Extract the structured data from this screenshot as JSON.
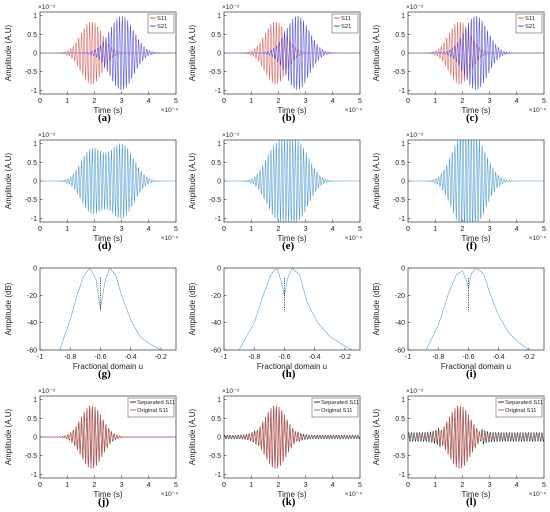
{
  "chart_data": [
    {
      "id": "a",
      "label": "(a)",
      "type": "line",
      "xlabel": "Time (s)",
      "ylabel": "Amplitude (A.U)",
      "xlim": [
        0,
        5
      ],
      "ylim": [
        -1.1,
        1.1
      ],
      "x_ticks": [
        "0",
        "1",
        "2",
        "3",
        "4",
        "5"
      ],
      "y_ticks": [
        "-1",
        "-0.5",
        "0",
        "0.5",
        "1"
      ],
      "x_exponent": "×10⁻⁴",
      "y_exponent": "×10⁻⁹",
      "legend": [
        "S11",
        "S21"
      ],
      "legend_position": "top-right",
      "series": [
        {
          "name": "S11",
          "color": "#d9534f",
          "center": 1.9,
          "width": 0.55,
          "amplitude": 0.85,
          "cycles_per_unit": 10
        },
        {
          "name": "S21",
          "color": "#3b3bd6",
          "center": 3.0,
          "width": 0.62,
          "amplitude": 1.0,
          "cycles_per_unit": 10
        }
      ]
    },
    {
      "id": "b",
      "label": "(b)",
      "type": "line",
      "xlabel": "Time (s)",
      "ylabel": "Amplitude (A.U)",
      "xlim": [
        0,
        5
      ],
      "ylim": [
        -1.1,
        1.1
      ],
      "x_ticks": [
        "0",
        "1",
        "2",
        "3",
        "4",
        "5"
      ],
      "y_ticks": [
        "-1",
        "-0.5",
        "0",
        "0.5",
        "1"
      ],
      "x_exponent": "×10⁻⁴",
      "y_exponent": "×10⁻⁹",
      "legend": [
        "S11",
        "S21"
      ],
      "legend_position": "top-right",
      "series": [
        {
          "name": "S11",
          "color": "#d9534f",
          "center": 1.9,
          "width": 0.55,
          "amplitude": 0.85,
          "cycles_per_unit": 10
        },
        {
          "name": "S21",
          "color": "#3b3bd6",
          "center": 2.7,
          "width": 0.6,
          "amplitude": 1.0,
          "cycles_per_unit": 10
        }
      ]
    },
    {
      "id": "c",
      "label": "(c)",
      "type": "line",
      "xlabel": "Time (s)",
      "ylabel": "Amplitude (A.U)",
      "xlim": [
        0,
        5
      ],
      "ylim": [
        -1.1,
        1.1
      ],
      "x_ticks": [
        "0",
        "1",
        "2",
        "3",
        "4",
        "5"
      ],
      "y_ticks": [
        "-1",
        "-0.5",
        "0",
        "0.5",
        "1"
      ],
      "x_exponent": "×10⁻⁴",
      "y_exponent": "×10⁻⁹",
      "legend": [
        "S11",
        "S21"
      ],
      "legend_position": "top-right",
      "series": [
        {
          "name": "S11",
          "color": "#d9534f",
          "center": 1.9,
          "width": 0.55,
          "amplitude": 0.85,
          "cycles_per_unit": 10
        },
        {
          "name": "S21",
          "color": "#3b3bd6",
          "center": 2.5,
          "width": 0.6,
          "amplitude": 1.0,
          "cycles_per_unit": 10
        }
      ]
    },
    {
      "id": "d",
      "label": "(d)",
      "type": "line",
      "xlabel": "Time (s)",
      "ylabel": "Amplitude (A.U)",
      "xlim": [
        0,
        5
      ],
      "ylim": [
        -1.1,
        1.1
      ],
      "x_ticks": [
        "0",
        "1",
        "2",
        "3",
        "4",
        "5"
      ],
      "y_ticks": [
        "-1",
        "-0.5",
        "0",
        "0.5",
        "1"
      ],
      "x_exponent": "×10⁻⁴",
      "y_exponent": "×10⁻⁹",
      "legend": [],
      "series": [
        {
          "name": "",
          "color": "#3a8fc7",
          "mix": [
            {
              "center": 1.9,
              "width": 0.55,
              "amplitude": 0.85
            },
            {
              "center": 3.0,
              "width": 0.62,
              "amplitude": 1.0
            }
          ],
          "cycles_per_unit": 10
        }
      ]
    },
    {
      "id": "e",
      "label": "(e)",
      "type": "line",
      "xlabel": "Time (s)",
      "ylabel": "Amplitude (A.U)",
      "xlim": [
        0,
        5
      ],
      "ylim": [
        -1.1,
        1.1
      ],
      "x_ticks": [
        "0",
        "1",
        "2",
        "3",
        "4",
        "5"
      ],
      "y_ticks": [
        "-1",
        "-0.5",
        "0",
        "0.5",
        "1"
      ],
      "x_exponent": "×10⁻⁴",
      "y_exponent": "×10⁻⁹",
      "legend": [],
      "series": [
        {
          "name": "",
          "color": "#3a8fc7",
          "mix": [
            {
              "center": 1.9,
              "width": 0.55,
              "amplitude": 0.85
            },
            {
              "center": 2.7,
              "width": 0.6,
              "amplitude": 1.0
            }
          ],
          "cycles_per_unit": 10
        }
      ]
    },
    {
      "id": "f",
      "label": "(f)",
      "type": "line",
      "xlabel": "Time (s)",
      "ylabel": "Amplitude (A.U)",
      "xlim": [
        0,
        5
      ],
      "ylim": [
        -1.1,
        1.1
      ],
      "x_ticks": [
        "0",
        "1",
        "2",
        "3",
        "4",
        "5"
      ],
      "y_ticks": [
        "-1",
        "-0.5",
        "0",
        "0.5",
        "1"
      ],
      "x_exponent": "×10⁻⁴",
      "y_exponent": "×10⁻⁹",
      "legend": [],
      "series": [
        {
          "name": "",
          "color": "#3a8fc7",
          "mix": [
            {
              "center": 1.9,
              "width": 0.55,
              "amplitude": 0.85
            },
            {
              "center": 2.5,
              "width": 0.6,
              "amplitude": 1.0
            }
          ],
          "cycles_per_unit": 10
        }
      ]
    },
    {
      "id": "g",
      "label": "(g)",
      "type": "line",
      "xlabel": "Fractional domain u",
      "ylabel": "Amplitude (dB)",
      "xlim": [
        -1,
        -0.1
      ],
      "ylim": [
        -60,
        0
      ],
      "x_ticks": [
        "-1",
        "-0.8",
        "-0.6",
        "-0.4",
        "-0.2"
      ],
      "x_tick_values": [
        -1,
        -0.8,
        -0.6,
        -0.4,
        -0.2
      ],
      "y_ticks": [
        "-60",
        "-40",
        "-20",
        "0"
      ],
      "y_tick_values": [
        -60,
        -40,
        -20,
        0
      ],
      "series": [
        {
          "name": "",
          "color": "#3a8fc7",
          "points": [
            [
              -0.87,
              -60
            ],
            [
              -0.8,
              -38
            ],
            [
              -0.75,
              -18
            ],
            [
              -0.71,
              -6
            ],
            [
              -0.67,
              0
            ],
            [
              -0.63,
              -8
            ],
            [
              -0.6,
              -30
            ],
            [
              -0.57,
              -10
            ],
            [
              -0.54,
              0
            ],
            [
              -0.5,
              -5
            ],
            [
              -0.46,
              -20
            ],
            [
              -0.4,
              -38
            ],
            [
              -0.34,
              -50
            ],
            [
              -0.28,
              -55
            ],
            [
              -0.2,
              -60
            ]
          ]
        }
      ],
      "marker_x": -0.6
    },
    {
      "id": "h",
      "label": "(h)",
      "type": "line",
      "xlabel": "Fractional domain u",
      "ylabel": "Amplitude (dB)",
      "xlim": [
        -1,
        -0.1
      ],
      "ylim": [
        -60,
        0
      ],
      "x_ticks": [
        "-1",
        "-0.8",
        "-0.6",
        "-0.4",
        "-0.2"
      ],
      "x_tick_values": [
        -1,
        -0.8,
        -0.6,
        -0.4,
        -0.2
      ],
      "y_ticks": [
        "-60",
        "-40",
        "-20",
        "0"
      ],
      "y_tick_values": [
        -60,
        -40,
        -20,
        0
      ],
      "series": [
        {
          "name": "",
          "color": "#3a8fc7",
          "points": [
            [
              -0.9,
              -60
            ],
            [
              -0.8,
              -40
            ],
            [
              -0.74,
              -20
            ],
            [
              -0.69,
              -5
            ],
            [
              -0.65,
              0
            ],
            [
              -0.62,
              -10
            ],
            [
              -0.6,
              -20
            ],
            [
              -0.58,
              -8
            ],
            [
              -0.55,
              0
            ],
            [
              -0.5,
              -5
            ],
            [
              -0.45,
              -25
            ],
            [
              -0.38,
              -40
            ],
            [
              -0.3,
              -50
            ],
            [
              -0.22,
              -56
            ],
            [
              -0.15,
              -60
            ]
          ]
        }
      ],
      "marker_x": -0.6
    },
    {
      "id": "i",
      "label": "(i)",
      "type": "line",
      "xlabel": "Fractional domain u",
      "ylabel": "Amplitude (dB)",
      "xlim": [
        -1,
        -0.1
      ],
      "ylim": [
        -60,
        0
      ],
      "x_ticks": [
        "-1",
        "-0.8",
        "-0.6",
        "-0.4",
        "-0.2"
      ],
      "x_tick_values": [
        -1,
        -0.8,
        -0.6,
        -0.4,
        -0.2
      ],
      "y_ticks": [
        "-60",
        "-40",
        "-20",
        "0"
      ],
      "y_tick_values": [
        -60,
        -40,
        -20,
        0
      ],
      "series": [
        {
          "name": "",
          "color": "#3a8fc7",
          "points": [
            [
              -0.88,
              -60
            ],
            [
              -0.8,
              -42
            ],
            [
              -0.73,
              -18
            ],
            [
              -0.68,
              -5
            ],
            [
              -0.64,
              -2
            ],
            [
              -0.61,
              -10
            ],
            [
              -0.6,
              -15
            ],
            [
              -0.58,
              -4
            ],
            [
              -0.55,
              0
            ],
            [
              -0.5,
              -4
            ],
            [
              -0.46,
              -18
            ],
            [
              -0.4,
              -35
            ],
            [
              -0.33,
              -48
            ],
            [
              -0.26,
              -55
            ],
            [
              -0.2,
              -60
            ]
          ]
        }
      ],
      "marker_x": -0.6
    },
    {
      "id": "j",
      "label": "(j)",
      "type": "line",
      "xlabel": "Time (s)",
      "ylabel": "Amplitude (A.U)",
      "xlim": [
        0,
        5
      ],
      "ylim": [
        -1.1,
        1.1
      ],
      "x_ticks": [
        "0",
        "1",
        "2",
        "3",
        "4",
        "5"
      ],
      "y_ticks": [
        "-1",
        "-0.5",
        "0",
        "0.5",
        "1"
      ],
      "x_exponent": "×10⁻⁴",
      "y_exponent": "×10⁻⁹",
      "legend": [
        "Separated S11",
        "Original S11"
      ],
      "legend_position": "top-right",
      "series": [
        {
          "name": "Separated S11",
          "color": "#111111",
          "center": 1.9,
          "width": 0.55,
          "amplitude": 0.85,
          "cycles_per_unit": 10
        },
        {
          "name": "Original S11",
          "color": "#d9534f",
          "center": 1.9,
          "width": 0.55,
          "amplitude": 0.85,
          "cycles_per_unit": 10
        }
      ]
    },
    {
      "id": "k",
      "label": "(k)",
      "type": "line",
      "xlabel": "Time (s)",
      "ylabel": "Amplitude (A.U)",
      "xlim": [
        0,
        5
      ],
      "ylim": [
        -1.1,
        1.1
      ],
      "x_ticks": [
        "0",
        "1",
        "2",
        "3",
        "4",
        "5"
      ],
      "y_ticks": [
        "-1",
        "-0.5",
        "0",
        "0.5",
        "1"
      ],
      "x_exponent": "×10⁻⁴",
      "y_exponent": "×10⁻⁹",
      "legend": [
        "Separated S11",
        "Original S11"
      ],
      "legend_position": "top-right",
      "series": [
        {
          "name": "Separated S11",
          "color": "#111111",
          "center": 1.9,
          "width": 0.55,
          "amplitude": 0.85,
          "cycles_per_unit": 10,
          "tail": 0.05
        },
        {
          "name": "Original S11",
          "color": "#d9534f",
          "center": 1.9,
          "width": 0.55,
          "amplitude": 0.85,
          "cycles_per_unit": 10
        }
      ]
    },
    {
      "id": "l",
      "label": "(l)",
      "type": "line",
      "xlabel": "Time (s)",
      "ylabel": "Amplitude (A.U)",
      "xlim": [
        0,
        5
      ],
      "ylim": [
        -1.1,
        1.1
      ],
      "x_ticks": [
        "0",
        "1",
        "2",
        "3",
        "4",
        "5"
      ],
      "y_ticks": [
        "-1",
        "-0.5",
        "0",
        "0.5",
        "1"
      ],
      "x_exponent": "×10⁻⁴",
      "y_exponent": "×10⁻⁹",
      "legend": [
        "Separated S11",
        "Original S11"
      ],
      "legend_position": "top-right",
      "series": [
        {
          "name": "Separated S11",
          "color": "#111111",
          "center": 1.9,
          "width": 0.55,
          "amplitude": 0.85,
          "cycles_per_unit": 10,
          "tail": 0.12
        },
        {
          "name": "Original S11",
          "color": "#d9534f",
          "center": 1.9,
          "width": 0.55,
          "amplitude": 0.85,
          "cycles_per_unit": 10
        }
      ]
    }
  ]
}
